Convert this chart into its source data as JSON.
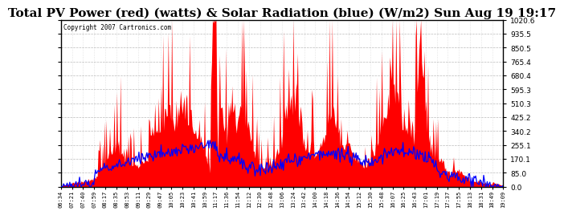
{
  "title": "Total PV Power (red) (watts) & Solar Radiation (blue) (W/m2) Sun Aug 19 19:17",
  "copyright": "Copyright 2007 Cartronics.com",
  "yticks": [
    0.0,
    85.0,
    170.1,
    255.1,
    340.2,
    425.2,
    510.3,
    595.3,
    680.4,
    765.4,
    850.5,
    935.5,
    1020.6
  ],
  "ymax": 1020.6,
  "ymin": 0.0,
  "xtick_labels": [
    "06:34",
    "07:21",
    "07:40",
    "07:59",
    "08:17",
    "08:35",
    "08:53",
    "09:11",
    "09:29",
    "09:47",
    "10:05",
    "10:23",
    "10:41",
    "10:59",
    "11:17",
    "11:36",
    "11:54",
    "12:12",
    "12:30",
    "12:48",
    "13:06",
    "13:24",
    "13:42",
    "14:00",
    "14:18",
    "14:36",
    "14:54",
    "15:12",
    "15:30",
    "15:48",
    "16:07",
    "16:25",
    "16:43",
    "17:01",
    "17:19",
    "17:37",
    "17:55",
    "18:13",
    "18:31",
    "18:49",
    "19:09"
  ],
  "n_xticks": 41,
  "background_color": "#ffffff",
  "title_fontsize": 11,
  "red_color": "#ff0000",
  "blue_color": "#0000ff",
  "grid_color": "#aaaaaa",
  "n_points": 500
}
